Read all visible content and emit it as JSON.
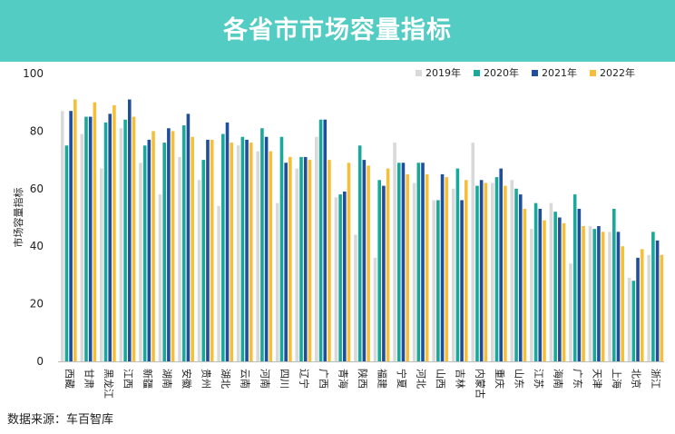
{
  "header": {
    "title": "各省市市场容量指标"
  },
  "source": "数据来源：车百智库",
  "chart_data": {
    "type": "bar",
    "title": "各省市市场容量指标",
    "xlabel": "",
    "ylabel": "市场容量指标",
    "ylim": [
      0,
      100
    ],
    "yticks": [
      0,
      20,
      40,
      60,
      80,
      100
    ],
    "grid": false,
    "legend_position": "top-right",
    "categories": [
      "西藏",
      "甘肃",
      "黑龙江",
      "江西",
      "新疆",
      "湖南",
      "安徽",
      "贵州",
      "湖北",
      "云南",
      "河南",
      "四川",
      "辽宁",
      "广西",
      "青海",
      "陕西",
      "福建",
      "宁夏",
      "河北",
      "山西",
      "吉林",
      "内蒙古",
      "重庆",
      "山东",
      "江苏",
      "海南",
      "广东",
      "天津",
      "上海",
      "北京",
      "浙江"
    ],
    "series": [
      {
        "name": "2019年",
        "color": "#d9d9d9",
        "values": [
          87,
          79,
          67,
          81,
          69,
          58,
          71,
          63,
          54,
          75,
          73,
          55,
          67,
          78,
          57,
          44,
          36,
          76,
          62,
          56,
          60,
          76,
          62,
          63,
          46,
          55,
          34,
          47,
          45,
          29,
          37
        ]
      },
      {
        "name": "2020年",
        "color": "#1aa89a",
        "values": [
          75,
          85,
          83,
          84,
          75,
          76,
          82,
          70,
          79,
          78,
          81,
          78,
          71,
          84,
          58,
          75,
          63,
          69,
          69,
          56,
          67,
          61,
          64,
          60,
          55,
          52,
          58,
          46,
          53,
          28,
          45
        ]
      },
      {
        "name": "2021年",
        "color": "#1f4e9a",
        "values": [
          87,
          85,
          86,
          91,
          77,
          81,
          86,
          77,
          83,
          77,
          78,
          69,
          71,
          84,
          59,
          70,
          61,
          69,
          69,
          65,
          56,
          63,
          67,
          58,
          53,
          50,
          53,
          47,
          45,
          36,
          42
        ]
      },
      {
        "name": "2022年",
        "color": "#f5bf3a",
        "values": [
          91,
          90,
          89,
          85,
          80,
          80,
          78,
          77,
          76,
          76,
          73,
          71,
          70,
          70,
          69,
          68,
          67,
          65,
          65,
          64,
          63,
          62,
          61,
          53,
          49,
          48,
          47,
          45,
          40,
          39,
          37
        ]
      }
    ]
  }
}
